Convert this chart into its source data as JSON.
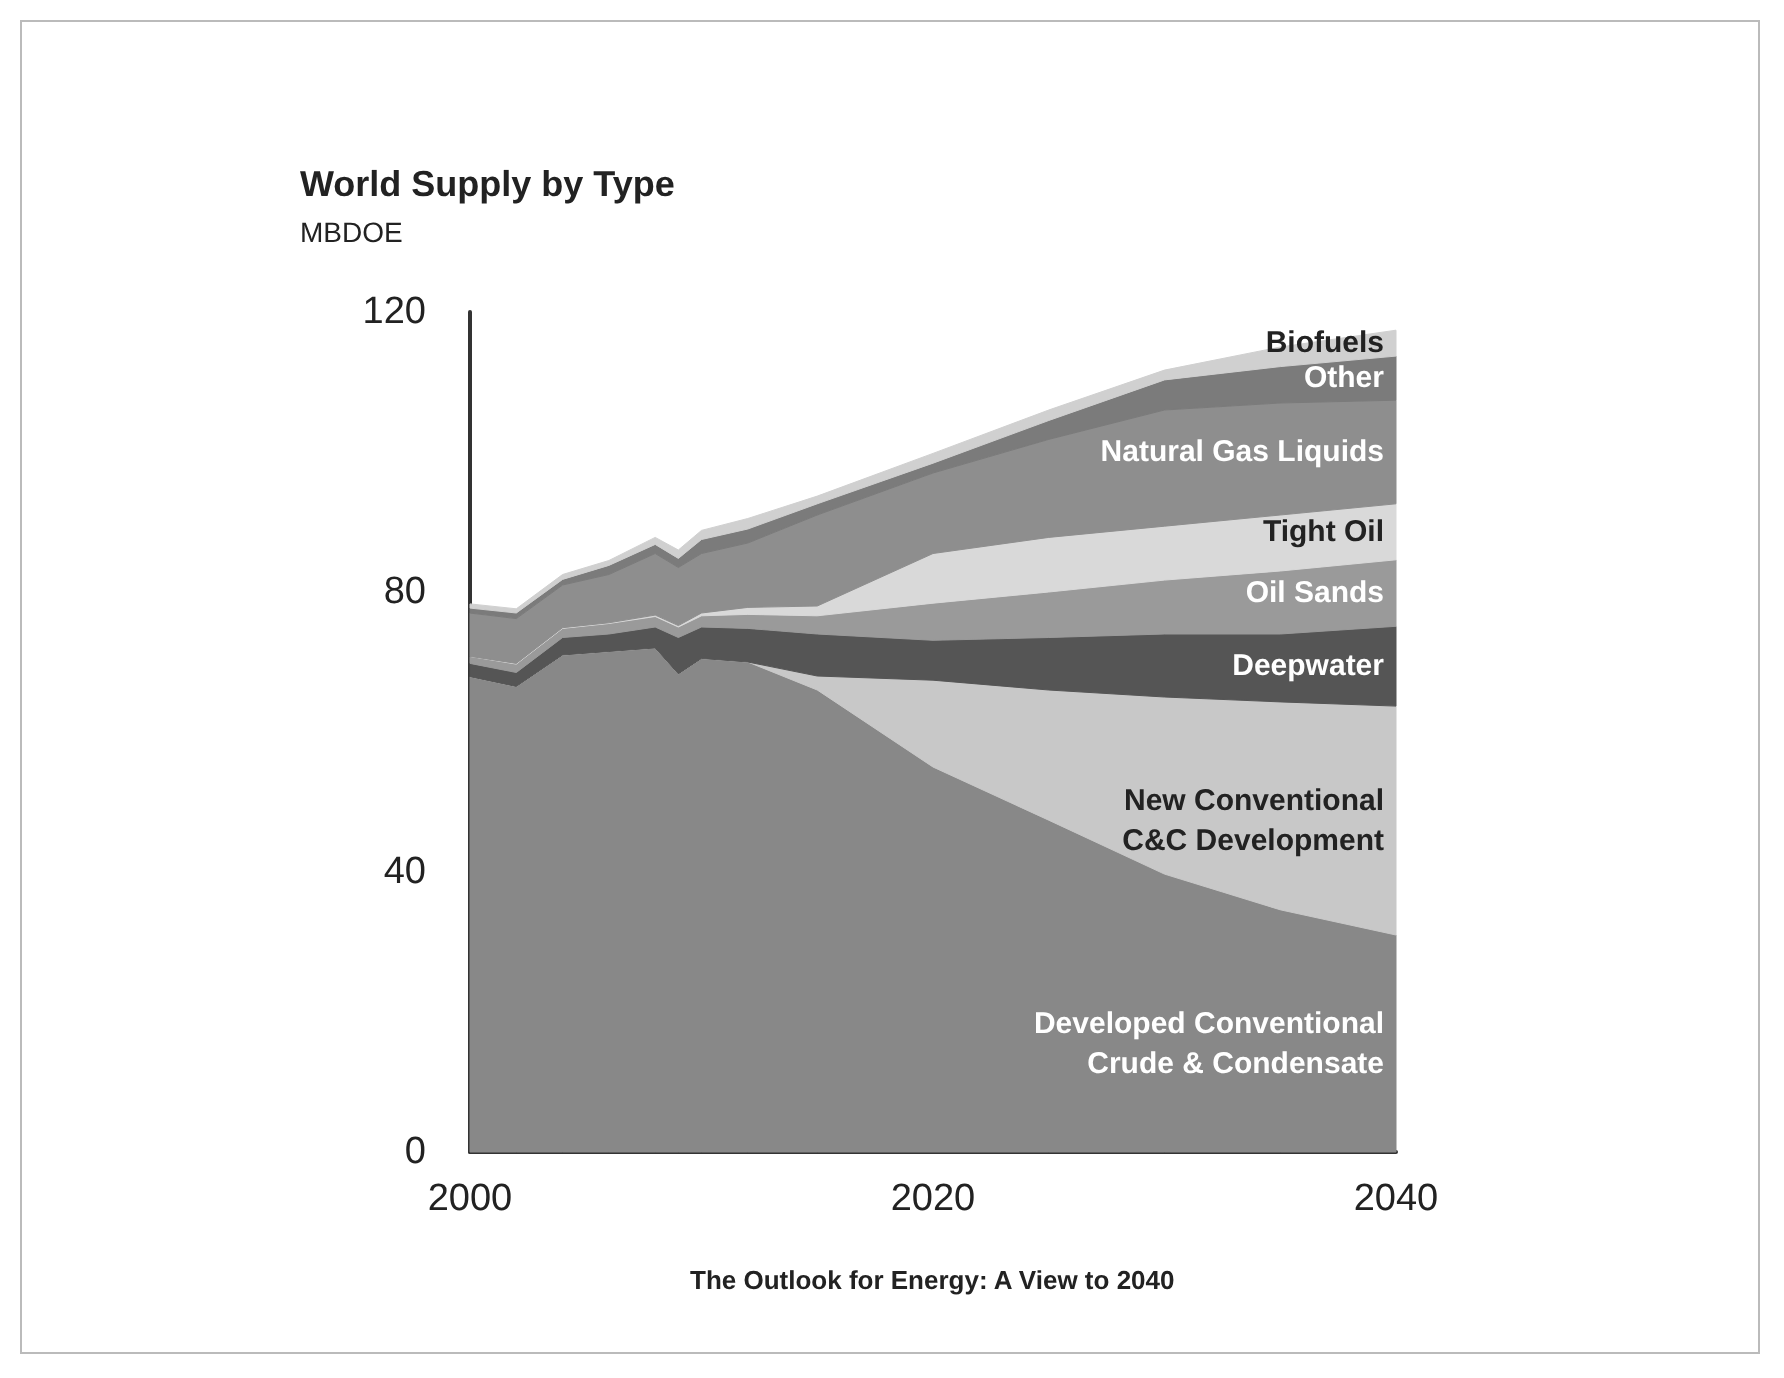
{
  "chart_data": {
    "type": "area",
    "title": "World Supply by Type",
    "subtitle": "MBDOE",
    "stacked": true,
    "legend": false,
    "grid": false,
    "x": [
      2000,
      2002,
      2004,
      2006,
      2008,
      2009,
      2010,
      2012,
      2015,
      2020,
      2025,
      2030,
      2035,
      2040
    ],
    "xlim": [
      2000,
      2040
    ],
    "xticks": [
      2000,
      2020,
      2040
    ],
    "ylim": [
      0,
      120
    ],
    "yticks": [
      0,
      40,
      80,
      120
    ],
    "series": [
      {
        "name": "Developed Conventional Crude & Condensate",
        "color": "#888888",
        "values": [
          67.9,
          66.5,
          71,
          71.5,
          72,
          68.3,
          70.5,
          70,
          66,
          55,
          47.4,
          39.7,
          34.6,
          31
        ]
      },
      {
        "name": "New Conventional C&C Development",
        "color": "#c8c8c8",
        "values": [
          0,
          0,
          0,
          0,
          0,
          0,
          0,
          0,
          2,
          12.4,
          18.6,
          25.3,
          29.7,
          32.7
        ]
      },
      {
        "name": "Deepwater",
        "color": "#555555",
        "values": [
          1.9,
          2,
          2.5,
          2.5,
          3,
          5.2,
          4.5,
          4.8,
          6,
          5.7,
          7.5,
          9,
          9.7,
          11.4
        ]
      },
      {
        "name": "Oil Sands",
        "color": "#9a9a9a",
        "values": [
          1,
          1.2,
          1.3,
          1.5,
          1.5,
          1.5,
          1.6,
          2,
          2.6,
          5.3,
          6.5,
          7.7,
          9,
          9.5
        ]
      },
      {
        "name": "Tight Oil",
        "color": "#d9d9d9",
        "values": [
          0,
          0.1,
          0.1,
          0.1,
          0.2,
          0.2,
          0.4,
          1,
          1.4,
          7.1,
          7.8,
          7.7,
          8,
          8
        ]
      },
      {
        "name": "Natural Gas Liquids",
        "color": "#8e8e8e",
        "values": [
          6.2,
          6.4,
          6.1,
          6.9,
          8.8,
          8.3,
          8.5,
          9.2,
          13,
          11.5,
          14,
          16.6,
          16,
          14.8
        ]
      },
      {
        "name": "Other",
        "color": "#7b7b7b",
        "values": [
          0.7,
          0.8,
          0.8,
          1.3,
          1.3,
          1.3,
          2,
          2,
          1.6,
          1.4,
          2.7,
          4.3,
          5.2,
          6.3
        ]
      },
      {
        "name": "Biofuels",
        "color": "#d0d0d0",
        "values": [
          0.6,
          0.6,
          0.7,
          0.7,
          1,
          1.2,
          1.3,
          1.5,
          1.1,
          1.4,
          1.5,
          1.4,
          2.8,
          3.7
        ]
      }
    ],
    "annotations": [
      "The Outlook for Energy: A View to 2040"
    ]
  }
}
